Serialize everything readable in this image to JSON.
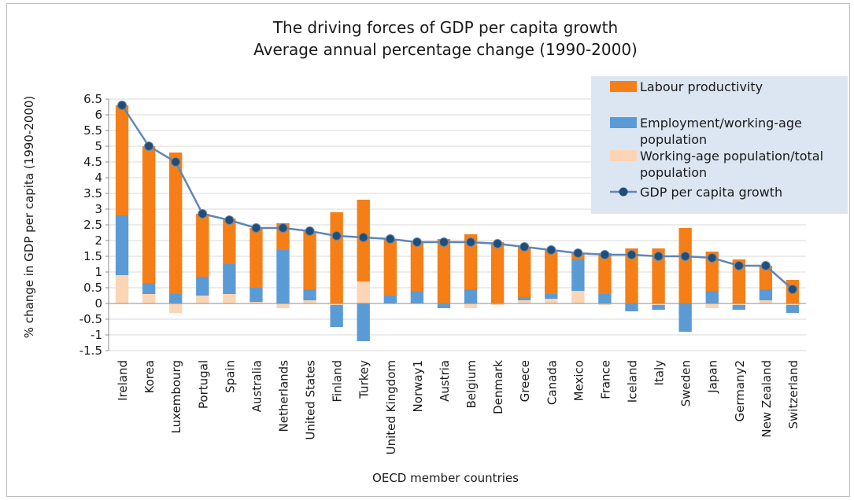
{
  "chart_data": {
    "type": "bar",
    "stacked": true,
    "title": "The driving forces of GDP per capita growth",
    "subtitle": "Average annual percentage change (1990-2000)",
    "xlabel": "OECD member countries",
    "ylabel": "% change in GDP per capita (1990-2000)",
    "ylim": [
      -1.5,
      6.5
    ],
    "yticks": [
      -1.5,
      -1,
      -0.5,
      0,
      0.5,
      1,
      1.5,
      2,
      2.5,
      3,
      3.5,
      4,
      4.5,
      5,
      5.5,
      6,
      6.5
    ],
    "ytick_labels": [
      "-1.5",
      "-1",
      "-0.5",
      "0",
      "0.5",
      "1",
      "1.5",
      "2",
      "2.5",
      "3",
      "3.5",
      "4",
      "4.5",
      "5",
      "5.5",
      "6",
      "6.5"
    ],
    "grid": true,
    "legend_position": "top-right",
    "categories": [
      "Ireland",
      "Korea",
      "Luxembourg",
      "Portugal",
      "Spain",
      "Australia",
      "Netherlands",
      "United States",
      "Finland",
      "Turkey",
      "United Kingdom",
      "Norway1",
      "Austria",
      "Belgium",
      "Denmark",
      "Greece",
      "Canada",
      "Mexico",
      "France",
      "Iceland",
      "Italy",
      "Sweden",
      "Japan",
      "Germany2",
      "New Zealand",
      "Switzerland"
    ],
    "series": [
      {
        "name": "Working-age population/total population",
        "type": "bar",
        "color": "#fcd5b5",
        "values": [
          0.9,
          0.3,
          -0.3,
          0.25,
          0.3,
          0.05,
          -0.15,
          0.1,
          -0.05,
          0.7,
          0.0,
          0.0,
          0.0,
          -0.15,
          -0.05,
          0.1,
          0.15,
          0.4,
          -0.05,
          0.0,
          -0.05,
          0.0,
          -0.15,
          -0.05,
          0.1,
          -0.05
        ]
      },
      {
        "name": "Employment/working-age population",
        "type": "bar",
        "color": "#5b9bd5",
        "values": [
          1.9,
          0.35,
          0.3,
          0.6,
          0.95,
          0.45,
          1.7,
          0.35,
          -0.7,
          -1.2,
          0.25,
          0.4,
          -0.15,
          0.45,
          0.0,
          0.1,
          0.15,
          1.0,
          0.3,
          -0.25,
          -0.15,
          -0.9,
          0.4,
          -0.15,
          0.35,
          -0.25
        ]
      },
      {
        "name": "Labour productivity",
        "type": "bar",
        "color": "#f57f16",
        "values": [
          3.5,
          4.35,
          4.5,
          2.0,
          1.45,
          1.9,
          0.85,
          1.85,
          2.9,
          2.6,
          1.8,
          1.55,
          2.05,
          1.75,
          1.95,
          1.6,
          1.4,
          0.2,
          1.3,
          1.75,
          1.75,
          2.4,
          1.25,
          1.4,
          0.75,
          0.75
        ]
      },
      {
        "name": "GDP per capita growth",
        "type": "line",
        "color": "#1f4e79",
        "values": [
          6.3,
          5.0,
          4.5,
          2.85,
          2.65,
          2.4,
          2.4,
          2.3,
          2.15,
          2.1,
          2.05,
          1.95,
          1.95,
          1.95,
          1.9,
          1.8,
          1.7,
          1.6,
          1.55,
          1.55,
          1.5,
          1.5,
          1.45,
          1.2,
          1.2,
          0.45
        ]
      }
    ],
    "legend": [
      {
        "label": "Labour productivity",
        "kind": "bar",
        "color": "#f57f16"
      },
      {
        "label": "Employment/working-age population",
        "kind": "bar",
        "color": "#5b9bd5"
      },
      {
        "label": "Working-age population/total population",
        "kind": "bar",
        "color": "#fcd5b5"
      },
      {
        "label": "GDP per capita growth",
        "kind": "line",
        "color": "#1f4e79"
      }
    ],
    "colors": {
      "legend_background": "#dce6f2",
      "grid": "#d9d9d9",
      "axis": "#8c8c8c"
    }
  }
}
